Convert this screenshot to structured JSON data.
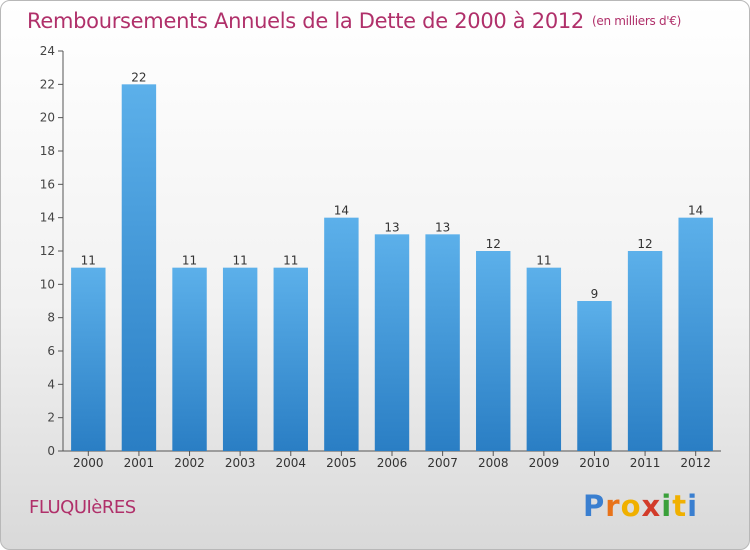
{
  "title": "Remboursements Annuels de la Dette de 2000 à 2012",
  "unit": "(en milliers d'€)",
  "commune": "FLUQUIèRES",
  "brand": {
    "letters": [
      {
        "ch": "P",
        "color": "#3a7fd0"
      },
      {
        "ch": "r",
        "color": "#e8731a"
      },
      {
        "ch": "o",
        "color": "#f0b000"
      },
      {
        "ch": "x",
        "color": "#d23b2a"
      },
      {
        "ch": "i",
        "color": "#3aa03a"
      },
      {
        "ch": "t",
        "color": "#f0b000"
      },
      {
        "ch": "i",
        "color": "#3a7fd0"
      }
    ]
  },
  "colors": {
    "bar_top": "#5cb0ea",
    "bar_bottom": "#2a7ec4",
    "accent": "#b0306a"
  },
  "chart_data": {
    "type": "bar",
    "title": "Remboursements Annuels de la Dette de 2000 à 2012",
    "categories": [
      "2000",
      "2001",
      "2002",
      "2003",
      "2004",
      "2005",
      "2006",
      "2007",
      "2008",
      "2009",
      "2010",
      "2011",
      "2012"
    ],
    "values": [
      11,
      22,
      11,
      11,
      11,
      14,
      13,
      13,
      12,
      11,
      9,
      12,
      14
    ],
    "ylim": [
      0,
      24
    ],
    "yticks": [
      0,
      2,
      4,
      6,
      8,
      10,
      12,
      14,
      16,
      18,
      20,
      22,
      24
    ],
    "grid": false,
    "legend": "none"
  }
}
